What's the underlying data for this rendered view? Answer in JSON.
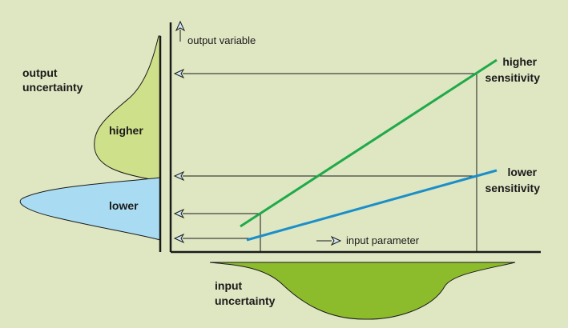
{
  "labels": {
    "output_uncertainty": [
      "output",
      "uncertainty"
    ],
    "higher": "higher",
    "lower": "lower",
    "output_variable": "output variable",
    "input_parameter": "input parameter",
    "higher_sensitivity": [
      "higher",
      "sensitivity"
    ],
    "lower_sensitivity": [
      "lower",
      "sensitivity"
    ],
    "input_uncertainty": [
      "input",
      "uncertainty"
    ]
  },
  "colors": {
    "background": "#dfe6c2",
    "higher_fill": "#cfe08a",
    "lower_fill": "#a9dcf2",
    "input_fill": "#8cbc2c",
    "higher_line": "#1faa49",
    "lower_line": "#1a8fc9",
    "axis": "#1a1a1a",
    "arrow": "#1a1a1a"
  },
  "icons": [
    "axis-up-arrow-icon",
    "axis-right-arrow-icon",
    "projection-arrow-icon"
  ]
}
